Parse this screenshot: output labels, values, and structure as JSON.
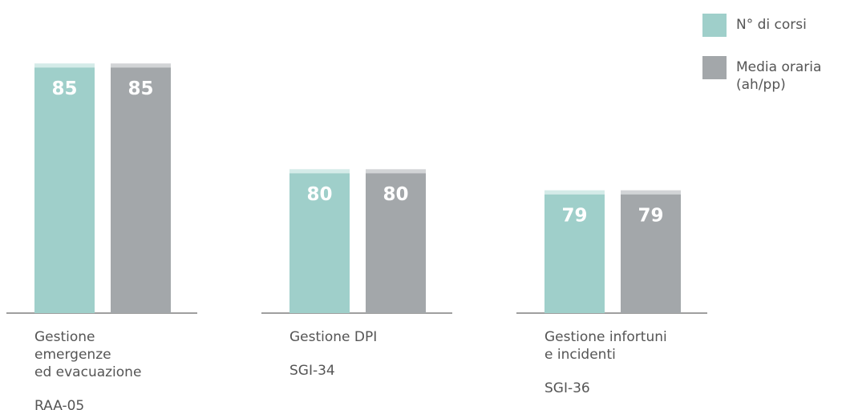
{
  "chart_data": {
    "type": "bar",
    "categories": [
      [
        "Gestione",
        "emergenze",
        "ed evacuazione"
      ],
      [
        "Gestione DPI"
      ],
      [
        "Gestione infortuni",
        "e incidenti"
      ]
    ],
    "codes": [
      "RAA-05",
      "SGI-34",
      "SGI-36"
    ],
    "series": [
      {
        "name": "N° di corsi",
        "color": "#9fcfca",
        "values": [
          85,
          80,
          79
        ]
      },
      {
        "name": "Media oraria (ah/pp)",
        "color": "#a3a7aa",
        "values": [
          85,
          80,
          79
        ]
      }
    ],
    "ylim": [
      73.2,
      86
    ]
  }
}
